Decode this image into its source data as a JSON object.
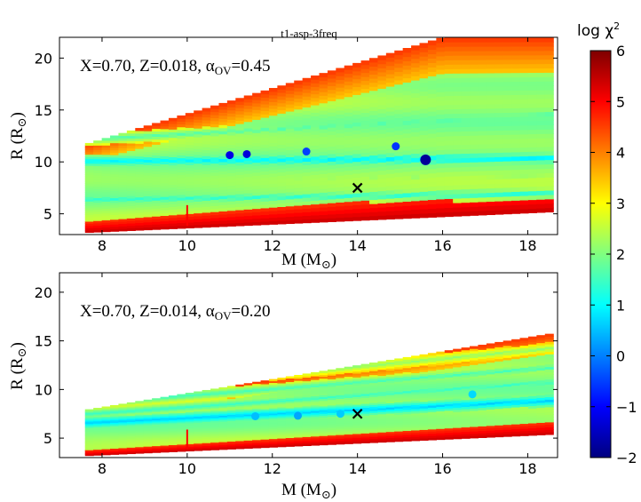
{
  "figure_title": "t1-asp-3freq",
  "colorbar": {
    "label_base": "log χ",
    "label_sup": "2",
    "min": -2,
    "max": 6,
    "ticks": [
      -2,
      -1,
      0,
      1,
      2,
      3,
      4,
      5,
      6
    ],
    "colormap": "jet"
  },
  "chart_data": [
    {
      "type": "scatter",
      "panel": "top",
      "annotation": {
        "prefix": "X=0.70, Z=0.018, ",
        "alpha": "α",
        "alpha_sub": "OV",
        "suffix": "=0.45"
      },
      "xlabel": {
        "main": "M (M",
        "sub": "⊙",
        "end": ")"
      },
      "ylabel": {
        "main": "R (R",
        "sub": "⊙",
        "end": ")"
      },
      "xlim": [
        7,
        18.7
      ],
      "ylim": [
        3,
        22
      ],
      "xticks": [
        8,
        10,
        12,
        14,
        16,
        18
      ],
      "yticks": [
        5,
        10,
        15,
        20
      ],
      "grid_region": {
        "m_min": 7.6,
        "m_max": 18.6,
        "r_bottom_at_min": 3.2,
        "r_bottom_at_max": 5.2,
        "r_top_at_min": 11.7,
        "r_top_at_max": 22.0,
        "r_top_kink_mass": 16.0,
        "r_top_at_kink": 22.0
      },
      "min_chi_bands": [
        {
          "r_at_min": 10.1,
          "r_at_max": 10.4,
          "log_chi2": 0.9
        },
        {
          "r_at_min": 6.4,
          "r_at_max": 7.0,
          "log_chi2": 1.3
        },
        {
          "r_at_min": 12.2,
          "r_at_max": 14.6,
          "log_chi2": 1.6
        },
        {
          "r_at_min": 8.2,
          "r_at_max": 8.7,
          "log_chi2": 2.2
        }
      ],
      "best_points": [
        {
          "mass": 11.0,
          "radius": 10.65,
          "log_chi2": -1.2
        },
        {
          "mass": 11.4,
          "radius": 10.75,
          "log_chi2": -1.3
        },
        {
          "mass": 12.8,
          "radius": 11.0,
          "log_chi2": -0.5
        },
        {
          "mass": 14.9,
          "radius": 11.5,
          "log_chi2": -0.6
        },
        {
          "mass": 15.6,
          "radius": 10.2,
          "log_chi2": -1.8
        }
      ],
      "observed_marker": {
        "mass": 14.0,
        "radius": 7.5,
        "symbol": "×"
      }
    },
    {
      "type": "scatter",
      "panel": "bottom",
      "annotation": {
        "prefix": "X=0.70, Z=0.014, ",
        "alpha": "α",
        "alpha_sub": "OV",
        "suffix": "=0.20"
      },
      "xlabel": {
        "main": "M (M",
        "sub": "⊙",
        "end": ")"
      },
      "ylabel": {
        "main": "R (R",
        "sub": "⊙",
        "end": ")"
      },
      "xlim": [
        7,
        18.7
      ],
      "ylim": [
        3,
        22
      ],
      "xticks": [
        8,
        10,
        12,
        14,
        16,
        18
      ],
      "yticks": [
        5,
        10,
        15,
        20
      ],
      "grid_region": {
        "m_min": 7.6,
        "m_max": 18.6,
        "r_bottom_at_min": 3.2,
        "r_bottom_at_max": 5.4,
        "r_top_at_min": 7.9,
        "r_top_at_max": 15.8
      },
      "min_chi_bands": [
        {
          "r_at_min": 6.6,
          "r_at_max": 8.9,
          "log_chi2": 0.6
        },
        {
          "r_at_min": 7.5,
          "r_at_max": 10.8,
          "log_chi2": 1.4
        },
        {
          "r_at_min": 8.6,
          "r_at_max": 12.3,
          "log_chi2": 1.5
        },
        {
          "r_at_min": 9.7,
          "r_at_max": 14.3,
          "log_chi2": 2.1
        }
      ],
      "best_points": [
        {
          "mass": 11.6,
          "radius": 7.25,
          "log_chi2": 0.5
        },
        {
          "mass": 12.6,
          "radius": 7.3,
          "log_chi2": 0.3
        },
        {
          "mass": 13.6,
          "radius": 7.5,
          "log_chi2": 0.6
        },
        {
          "mass": 16.7,
          "radius": 9.5,
          "log_chi2": 0.7
        }
      ],
      "observed_marker": {
        "mass": 14.0,
        "radius": 7.5,
        "symbol": "×"
      }
    }
  ]
}
